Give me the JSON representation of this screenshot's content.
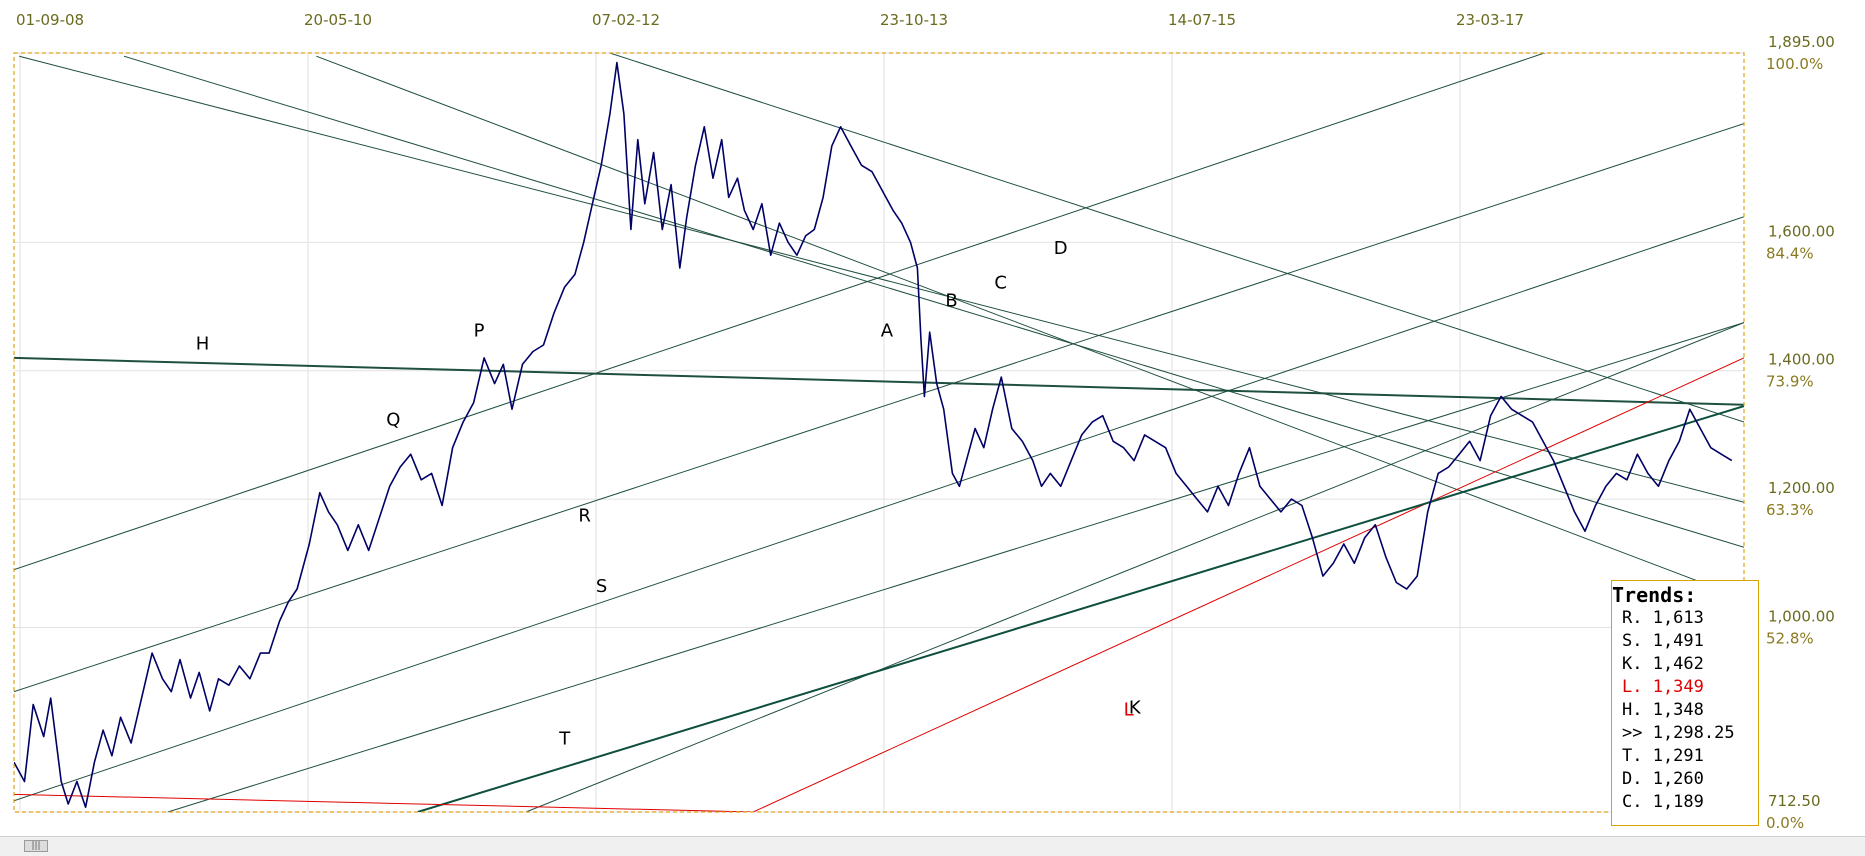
{
  "chart_data": {
    "type": "line",
    "x_ticks": [
      "01-09-08",
      "20-05-10",
      "07-02-12",
      "23-10-13",
      "14-07-15",
      "23-03-17"
    ],
    "y_ticks": [
      {
        "price": "1,895.00",
        "pct": "100.0%"
      },
      {
        "price": "1,600.00",
        "pct": "84.4%"
      },
      {
        "price": "1,400.00",
        "pct": "73.9%"
      },
      {
        "price": "1,200.00",
        "pct": "63.3%"
      },
      {
        "price": "1,000.00",
        "pct": "52.8%"
      },
      {
        "price": "712.50",
        "pct": "0.0%"
      }
    ],
    "y_tick_values": [
      1895,
      1600,
      1400,
      1200,
      1000,
      712.5
    ],
    "ylim": [
      712.5,
      1895
    ],
    "x_range_years": [
      2008.67,
      2018.57
    ],
    "grid": true,
    "series": [
      {
        "color": "#000066",
        "points": [
          [
            2008.67,
            790
          ],
          [
            2008.73,
            760
          ],
          [
            2008.78,
            880
          ],
          [
            2008.84,
            830
          ],
          [
            2008.88,
            890
          ],
          [
            2008.94,
            760
          ],
          [
            2008.98,
            725
          ],
          [
            2009.03,
            760
          ],
          [
            2009.08,
            720
          ],
          [
            2009.13,
            790
          ],
          [
            2009.18,
            840
          ],
          [
            2009.23,
            800
          ],
          [
            2009.28,
            860
          ],
          [
            2009.34,
            820
          ],
          [
            2009.4,
            890
          ],
          [
            2009.46,
            960
          ],
          [
            2009.52,
            920
          ],
          [
            2009.57,
            900
          ],
          [
            2009.62,
            950
          ],
          [
            2009.68,
            890
          ],
          [
            2009.73,
            930
          ],
          [
            2009.79,
            870
          ],
          [
            2009.84,
            920
          ],
          [
            2009.9,
            910
          ],
          [
            2009.96,
            940
          ],
          [
            2010.02,
            920
          ],
          [
            2010.08,
            960
          ],
          [
            2010.13,
            960
          ],
          [
            2010.19,
            1010
          ],
          [
            2010.24,
            1040
          ],
          [
            2010.29,
            1060
          ],
          [
            2010.36,
            1130
          ],
          [
            2010.42,
            1210
          ],
          [
            2010.47,
            1180
          ],
          [
            2010.52,
            1160
          ],
          [
            2010.58,
            1120
          ],
          [
            2010.64,
            1160
          ],
          [
            2010.7,
            1120
          ],
          [
            2010.76,
            1170
          ],
          [
            2010.82,
            1220
          ],
          [
            2010.88,
            1250
          ],
          [
            2010.94,
            1270
          ],
          [
            2011.0,
            1230
          ],
          [
            2011.06,
            1240
          ],
          [
            2011.12,
            1190
          ],
          [
            2011.18,
            1280
          ],
          [
            2011.24,
            1320
          ],
          [
            2011.3,
            1350
          ],
          [
            2011.36,
            1420
          ],
          [
            2011.42,
            1380
          ],
          [
            2011.47,
            1410
          ],
          [
            2011.52,
            1340
          ],
          [
            2011.58,
            1410
          ],
          [
            2011.64,
            1430
          ],
          [
            2011.7,
            1440
          ],
          [
            2011.76,
            1490
          ],
          [
            2011.82,
            1530
          ],
          [
            2011.88,
            1550
          ],
          [
            2011.93,
            1600
          ],
          [
            2011.98,
            1660
          ],
          [
            2012.03,
            1720
          ],
          [
            2012.08,
            1800
          ],
          [
            2012.12,
            1880
          ],
          [
            2012.16,
            1800
          ],
          [
            2012.2,
            1620
          ],
          [
            2012.24,
            1760
          ],
          [
            2012.28,
            1660
          ],
          [
            2012.33,
            1740
          ],
          [
            2012.38,
            1620
          ],
          [
            2012.43,
            1690
          ],
          [
            2012.48,
            1560
          ],
          [
            2012.52,
            1640
          ],
          [
            2012.57,
            1720
          ],
          [
            2012.62,
            1780
          ],
          [
            2012.67,
            1700
          ],
          [
            2012.72,
            1760
          ],
          [
            2012.76,
            1670
          ],
          [
            2012.81,
            1700
          ],
          [
            2012.85,
            1650
          ],
          [
            2012.9,
            1620
          ],
          [
            2012.95,
            1660
          ],
          [
            2013.0,
            1580
          ],
          [
            2013.05,
            1630
          ],
          [
            2013.1,
            1600
          ],
          [
            2013.15,
            1580
          ],
          [
            2013.2,
            1610
          ],
          [
            2013.25,
            1620
          ],
          [
            2013.3,
            1670
          ],
          [
            2013.35,
            1750
          ],
          [
            2013.4,
            1780
          ],
          [
            2013.46,
            1750
          ],
          [
            2013.52,
            1720
          ],
          [
            2013.58,
            1710
          ],
          [
            2013.64,
            1680
          ],
          [
            2013.7,
            1650
          ],
          [
            2013.75,
            1630
          ],
          [
            2013.8,
            1600
          ],
          [
            2013.84,
            1560
          ],
          [
            2013.86,
            1450
          ],
          [
            2013.88,
            1360
          ],
          [
            2013.91,
            1460
          ],
          [
            2013.95,
            1380
          ],
          [
            2013.99,
            1340
          ],
          [
            2014.04,
            1240
          ],
          [
            2014.08,
            1220
          ],
          [
            2014.12,
            1260
          ],
          [
            2014.17,
            1310
          ],
          [
            2014.22,
            1280
          ],
          [
            2014.27,
            1340
          ],
          [
            2014.32,
            1390
          ],
          [
            2014.38,
            1310
          ],
          [
            2014.44,
            1290
          ],
          [
            2014.5,
            1260
          ],
          [
            2014.55,
            1220
          ],
          [
            2014.6,
            1240
          ],
          [
            2014.66,
            1220
          ],
          [
            2014.72,
            1260
          ],
          [
            2014.78,
            1300
          ],
          [
            2014.84,
            1320
          ],
          [
            2014.9,
            1330
          ],
          [
            2014.96,
            1290
          ],
          [
            2015.02,
            1280
          ],
          [
            2015.08,
            1260
          ],
          [
            2015.14,
            1300
          ],
          [
            2015.2,
            1290
          ],
          [
            2015.26,
            1280
          ],
          [
            2015.32,
            1240
          ],
          [
            2015.38,
            1220
          ],
          [
            2015.44,
            1200
          ],
          [
            2015.5,
            1180
          ],
          [
            2015.56,
            1220
          ],
          [
            2015.62,
            1190
          ],
          [
            2015.68,
            1240
          ],
          [
            2015.74,
            1280
          ],
          [
            2015.8,
            1220
          ],
          [
            2015.86,
            1200
          ],
          [
            2015.92,
            1180
          ],
          [
            2015.98,
            1200
          ],
          [
            2016.04,
            1190
          ],
          [
            2016.1,
            1140
          ],
          [
            2016.16,
            1080
          ],
          [
            2016.22,
            1100
          ],
          [
            2016.28,
            1130
          ],
          [
            2016.34,
            1100
          ],
          [
            2016.4,
            1140
          ],
          [
            2016.46,
            1160
          ],
          [
            2016.52,
            1110
          ],
          [
            2016.58,
            1070
          ],
          [
            2016.64,
            1060
          ],
          [
            2016.7,
            1080
          ],
          [
            2016.76,
            1180
          ],
          [
            2016.82,
            1240
          ],
          [
            2016.88,
            1250
          ],
          [
            2016.94,
            1270
          ],
          [
            2017.0,
            1290
          ],
          [
            2017.06,
            1260
          ],
          [
            2017.12,
            1330
          ],
          [
            2017.18,
            1360
          ],
          [
            2017.24,
            1340
          ],
          [
            2017.3,
            1330
          ],
          [
            2017.36,
            1320
          ],
          [
            2017.42,
            1290
          ],
          [
            2017.48,
            1260
          ],
          [
            2017.54,
            1220
          ],
          [
            2017.6,
            1180
          ],
          [
            2017.66,
            1150
          ],
          [
            2017.72,
            1190
          ],
          [
            2017.78,
            1220
          ],
          [
            2017.84,
            1240
          ],
          [
            2017.9,
            1230
          ],
          [
            2017.96,
            1270
          ],
          [
            2018.02,
            1240
          ],
          [
            2018.08,
            1220
          ],
          [
            2018.14,
            1260
          ],
          [
            2018.2,
            1290
          ],
          [
            2018.26,
            1340
          ],
          [
            2018.32,
            1310
          ],
          [
            2018.38,
            1280
          ],
          [
            2018.44,
            1270
          ],
          [
            2018.5,
            1260
          ]
        ]
      }
    ],
    "trendlines": [
      {
        "label": "A",
        "color": "#1f4f3f",
        "from": [
          2008.7,
          1890
        ],
        "to": [
          2018.57,
          1195
        ]
      },
      {
        "label": "B",
        "color": "#1f4f3f",
        "from": [
          2009.3,
          1890
        ],
        "to": [
          2018.57,
          1125
        ]
      },
      {
        "label": "C",
        "color": "#1f4f3f",
        "from": [
          2010.4,
          1890
        ],
        "to": [
          2018.57,
          1045
        ]
      },
      {
        "label": "D",
        "color": "#1f4f3f",
        "from": [
          2012.08,
          1895
        ],
        "to": [
          2018.57,
          1320
        ]
      },
      {
        "label": "H",
        "color": "#1f4f3f",
        "from": [
          2008.67,
          1420
        ],
        "to": [
          2018.57,
          1347
        ],
        "width": 2
      },
      {
        "label": "K",
        "color": "#1f4f3f",
        "from": [
          2011.6,
          712.5
        ],
        "to": [
          2018.57,
          1475
        ]
      },
      {
        "label": "L",
        "color": "#e00000",
        "from": [
          2012.9,
          712.5
        ],
        "to": [
          2018.57,
          1420
        ]
      },
      {
        "label": "T",
        "color": "#0f4f3f",
        "from": [
          2010.98,
          712.5
        ],
        "to": [
          2018.57,
          1345
        ],
        "width": 2
      },
      {
        "label": "P",
        "color": "#1f4f3f",
        "from": [
          2008.67,
          1090
        ],
        "to": [
          2018.57,
          2000
        ]
      },
      {
        "label": "Q",
        "color": "#1f4f3f",
        "from": [
          2008.67,
          900
        ],
        "to": [
          2018.57,
          1785
        ]
      },
      {
        "label": "R",
        "color": "#1f4f3f",
        "from": [
          2008.67,
          730
        ],
        "to": [
          2018.57,
          1640
        ]
      },
      {
        "label": "S",
        "color": "#1f4f3f",
        "from": [
          2009.55,
          712.5
        ],
        "to": [
          2018.57,
          1475
        ]
      },
      {
        "color": "#e00000",
        "from": [
          2008.67,
          740
        ],
        "to": [
          2012.9,
          712.5
        ]
      }
    ],
    "line_label_positions": [
      {
        "label": "A",
        "x": 2013.63,
        "y": 1453
      },
      {
        "label": "B",
        "x": 2014.0,
        "y": 1500
      },
      {
        "label": "C",
        "x": 2014.28,
        "y": 1528
      },
      {
        "label": "D",
        "x": 2014.62,
        "y": 1582
      },
      {
        "label": "H",
        "x": 2009.71,
        "y": 1433
      },
      {
        "label": "K",
        "x": 2015.05,
        "y": 866
      },
      {
        "label": "L",
        "x": 2015.02,
        "y": 863
      },
      {
        "label": "T",
        "x": 2011.79,
        "y": 818
      },
      {
        "label": "P",
        "x": 2011.3,
        "y": 1453
      },
      {
        "label": "Q",
        "x": 2010.8,
        "y": 1315
      },
      {
        "label": "R",
        "x": 2011.9,
        "y": 1165
      },
      {
        "label": "S",
        "x": 2012.0,
        "y": 1055
      }
    ]
  },
  "legend": {
    "title": "Trends:",
    "rows": [
      {
        "text": "R. 1,613",
        "color": "#000000"
      },
      {
        "text": "S. 1,491",
        "color": "#000000"
      },
      {
        "text": "K. 1,462",
        "color": "#000000"
      },
      {
        "text": "L. 1,349",
        "color": "#e00000"
      },
      {
        "text": "H. 1,348",
        "color": "#000000"
      },
      {
        "text": ">> 1,298.25",
        "color": "#000000"
      },
      {
        "text": "T. 1,291",
        "color": "#000000"
      },
      {
        "text": "D. 1,260",
        "color": "#000000"
      },
      {
        "text": "C. 1,189",
        "color": "#000000"
      }
    ]
  },
  "scrollbar": {
    "thumb_label": "|||"
  }
}
